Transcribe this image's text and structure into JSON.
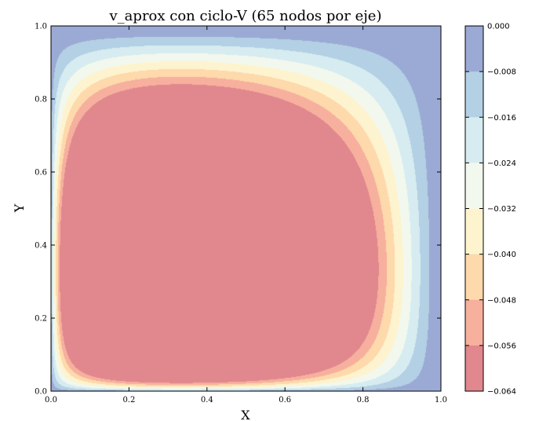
{
  "chart_data": {
    "type": "contour",
    "title": "v_aprox con ciclo-V (65 nodos por eje)",
    "xlabel": "X",
    "ylabel": "Y",
    "xlim": [
      0.0,
      1.0
    ],
    "ylim": [
      0.0,
      1.0
    ],
    "xticks": [
      "0.0",
      "0.2",
      "0.4",
      "0.6",
      "0.8",
      "1.0"
    ],
    "yticks": [
      "0.0",
      "0.2",
      "0.4",
      "0.6",
      "0.8",
      "1.0"
    ],
    "grid": false,
    "colorbar": {
      "levels": [
        0.0,
        -0.008,
        -0.016,
        -0.024,
        -0.032,
        -0.04,
        -0.048,
        -0.056,
        -0.064
      ],
      "labels": [
        "0.000",
        "−0.008",
        "−0.016",
        "−0.024",
        "−0.032",
        "−0.040",
        "−0.048",
        "−0.056",
        "−0.064"
      ],
      "colors": [
        "#9baad4",
        "#b3d0e4",
        "#d6ecf1",
        "#f2f8ee",
        "#fdf4cf",
        "#fdd9ac",
        "#f6b09d",
        "#e1878e"
      ]
    },
    "field": {
      "minimum_location": [
        0.7,
        0.7
      ],
      "minimum_value": -0.064,
      "boundary_value": 0.0
    }
  }
}
